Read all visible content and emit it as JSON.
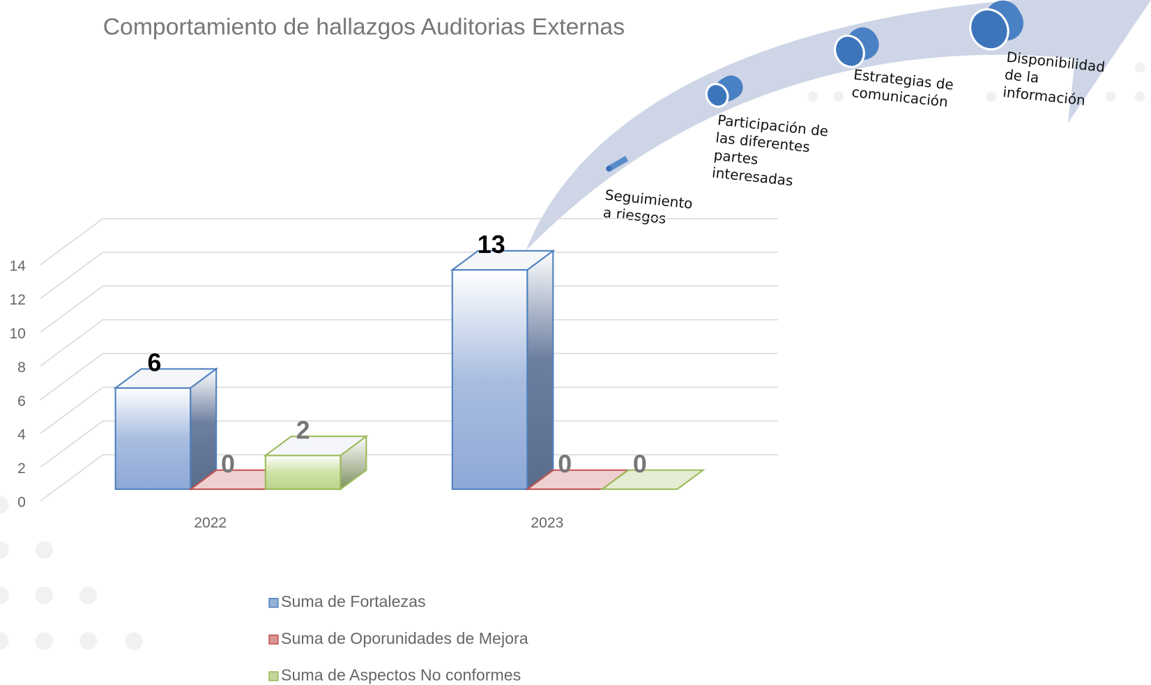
{
  "chart_data": {
    "type": "bar3d",
    "title": "Comportamiento de hallazgos Auditorias Externas",
    "categories": [
      "2022",
      "2023"
    ],
    "series": [
      {
        "name": "Suma de Fortalezas",
        "color": "#4f81bd",
        "values": [
          6,
          13
        ]
      },
      {
        "name": "Suma de Oporunidades de Mejora",
        "color": "#c0504d",
        "values": [
          0,
          0
        ]
      },
      {
        "name": "Suma de Aspectos No conformes",
        "color": "#9bbb59",
        "values": [
          2,
          0
        ]
      }
    ],
    "ylim": [
      0,
      14
    ],
    "yticks": [
      0,
      2,
      4,
      6,
      8,
      10,
      12,
      14
    ],
    "grid": true,
    "legend": "bottom",
    "annotations": [
      [
        "Seguimiento",
        "a riesgos"
      ],
      [
        "Participación de",
        "las diferentes",
        "partes",
        "interesadas"
      ],
      [
        "Estrategias de",
        "comunicación"
      ],
      [
        "Disponibilidad",
        "de la",
        "información"
      ]
    ]
  }
}
